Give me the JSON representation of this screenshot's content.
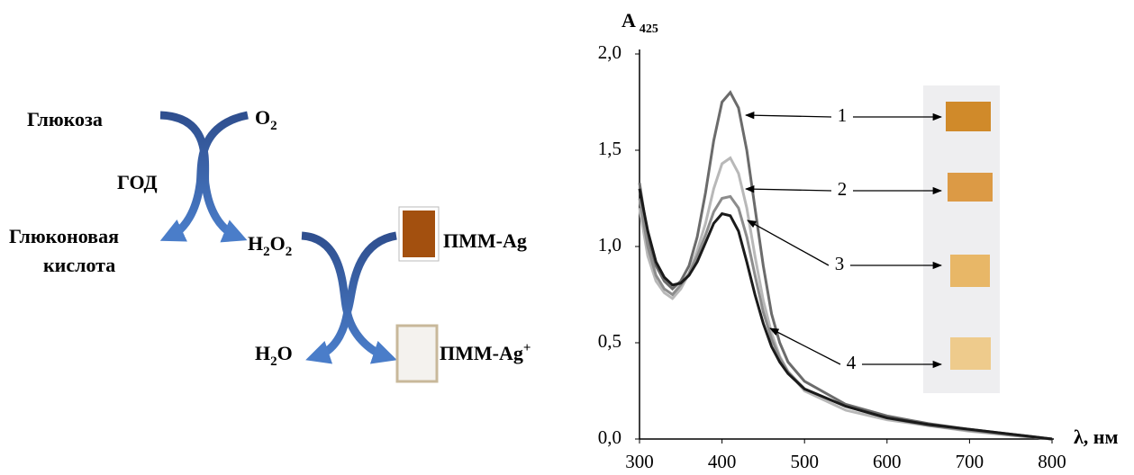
{
  "diagram": {
    "glucose": "Глюкоза",
    "o2": [
      "O",
      "2"
    ],
    "enzyme": "ГОД",
    "gluconic_acid": [
      "Глюконовая",
      "кислота"
    ],
    "h2o2": [
      "H",
      "2",
      "O",
      "2"
    ],
    "pmm_ag": "ПММ-Ag",
    "h2o": [
      "H",
      "2",
      "O"
    ],
    "pmm_ag_plus": [
      "ПММ-Ag",
      "+"
    ]
  },
  "chart_data": {
    "type": "line",
    "y_label": [
      "A",
      "425"
    ],
    "x_label": "λ, нм",
    "x": [
      300,
      310,
      320,
      330,
      340,
      350,
      360,
      370,
      380,
      390,
      400,
      410,
      420,
      430,
      440,
      450,
      460,
      470,
      480,
      500,
      550,
      600,
      650,
      700,
      750,
      800
    ],
    "series": [
      {
        "name": "1",
        "color": "#6b6b6b",
        "values": [
          1.33,
          1.05,
          0.9,
          0.82,
          0.78,
          0.82,
          0.9,
          1.05,
          1.28,
          1.55,
          1.75,
          1.8,
          1.72,
          1.5,
          1.2,
          0.9,
          0.65,
          0.5,
          0.4,
          0.3,
          0.18,
          0.12,
          0.08,
          0.05,
          0.025,
          0
        ]
      },
      {
        "name": "2",
        "color": "#b8b8b8",
        "values": [
          1.2,
          0.95,
          0.82,
          0.76,
          0.73,
          0.78,
          0.86,
          0.98,
          1.12,
          1.3,
          1.43,
          1.46,
          1.38,
          1.2,
          0.95,
          0.72,
          0.55,
          0.43,
          0.35,
          0.25,
          0.15,
          0.1,
          0.07,
          0.04,
          0.02,
          0
        ]
      },
      {
        "name": "3",
        "color": "#8c8c8c",
        "values": [
          1.25,
          1.0,
          0.85,
          0.78,
          0.75,
          0.8,
          0.86,
          0.95,
          1.06,
          1.18,
          1.25,
          1.26,
          1.2,
          1.05,
          0.85,
          0.66,
          0.52,
          0.42,
          0.35,
          0.26,
          0.17,
          0.11,
          0.07,
          0.045,
          0.02,
          0
        ]
      },
      {
        "name": "4",
        "color": "#1a1a1a",
        "values": [
          1.3,
          1.08,
          0.92,
          0.84,
          0.8,
          0.81,
          0.85,
          0.92,
          1.02,
          1.12,
          1.17,
          1.16,
          1.08,
          0.92,
          0.75,
          0.6,
          0.48,
          0.4,
          0.34,
          0.26,
          0.17,
          0.11,
          0.075,
          0.05,
          0.025,
          0
        ]
      }
    ],
    "xlim": [
      300,
      800
    ],
    "xticks": [
      300,
      400,
      500,
      600,
      700,
      800
    ],
    "ylim": [
      0,
      2
    ],
    "yticks": [
      {
        "value": 0,
        "label": "0,0"
      },
      {
        "value": 0.5,
        "label": "0,5"
      },
      {
        "value": 1,
        "label": "1,0"
      },
      {
        "value": 1.5,
        "label": "1,5"
      },
      {
        "value": 2,
        "label": "2,0"
      }
    ]
  }
}
